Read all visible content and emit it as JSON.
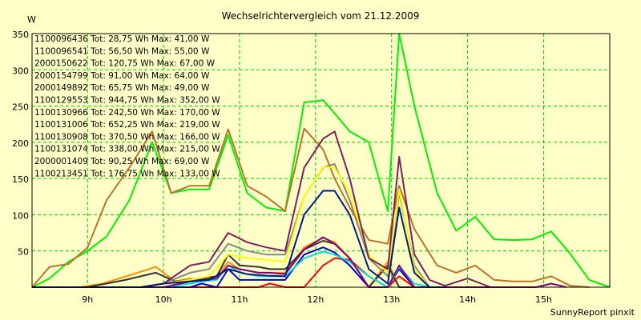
{
  "chart_data": {
    "type": "line",
    "title": "Wechselrichtervergleich vom 21.12.2009",
    "ylabel": "W",
    "xlabel": "",
    "footer": "SunnyReport pinxit",
    "ylim": [
      0,
      350
    ],
    "xlim": [
      8.27,
      15.87
    ],
    "yticks": [
      0,
      50,
      100,
      150,
      200,
      250,
      300,
      350
    ],
    "ytick_labels": [
      "",
      "50",
      "100",
      "150",
      "200",
      "250",
      "300",
      "350"
    ],
    "xticks": [
      9,
      10,
      11,
      12,
      13,
      14,
      15
    ],
    "xtick_labels": [
      "9h",
      "10h",
      "11h",
      "12h",
      "13h",
      "14h",
      "15h"
    ],
    "grid": true,
    "legend_position": "top-left",
    "series": [
      {
        "name": "1100096436 Tot: 28,75 Wh Max: 41,00 W",
        "color": "#ff0000",
        "x": [
          8.27,
          10.0,
          10.35,
          10.5,
          10.7,
          10.85,
          11.0,
          11.25,
          11.4,
          11.6,
          11.85,
          12.1,
          12.25,
          12.45,
          12.7,
          12.95,
          13.1,
          13.3,
          13.5
        ],
        "y": [
          0,
          0,
          0,
          0,
          0,
          0,
          0,
          0,
          5,
          0,
          0,
          30,
          40,
          38,
          15,
          0,
          15,
          0,
          0
        ]
      },
      {
        "name": "1100096541 Tot: 56,50 Wh Max: 55,00 W",
        "color": "#0000cc",
        "x": [
          8.27,
          10.0,
          10.35,
          10.5,
          10.7,
          10.85,
          11.0,
          11.25,
          11.4,
          11.6,
          11.85,
          12.1,
          12.25,
          12.45,
          12.7,
          12.95,
          13.1,
          13.3,
          13.5
        ],
        "y": [
          0,
          0,
          0,
          5,
          0,
          25,
          10,
          10,
          10,
          10,
          45,
          55,
          48,
          30,
          0,
          0,
          25,
          0,
          0
        ]
      },
      {
        "name": "2000150622 Tot: 120,75 Wh Max: 67,00 W",
        "color": "#ff8c00",
        "x": [
          8.27,
          8.9,
          9.2,
          9.6,
          9.9,
          10.15,
          10.35,
          10.5,
          10.7,
          10.85,
          11.0,
          11.25,
          11.4,
          11.6,
          11.85,
          12.1,
          12.25,
          12.45,
          12.7,
          12.95,
          13.1,
          13.3,
          13.5,
          13.7
        ],
        "y": [
          0,
          0,
          5,
          18,
          28,
          8,
          12,
          10,
          15,
          35,
          25,
          20,
          20,
          20,
          55,
          68,
          62,
          40,
          0,
          35,
          0,
          0,
          0,
          0
        ]
      },
      {
        "name": "2000154799 Tot: 91,00 Wh Max: 64,00 W",
        "color": "#333333",
        "x": [
          8.27,
          9.0,
          9.5,
          9.9,
          10.15,
          10.35,
          10.5,
          10.7,
          10.85,
          11.0,
          11.25,
          11.4,
          11.6,
          11.85,
          12.1,
          12.25,
          12.45,
          12.7,
          12.95,
          13.1,
          13.3,
          13.5
        ],
        "y": [
          0,
          0,
          10,
          20,
          8,
          10,
          12,
          15,
          45,
          30,
          28,
          25,
          25,
          52,
          64,
          60,
          40,
          0,
          30,
          0,
          0,
          0
        ]
      },
      {
        "name": "2000149892 Tot: 65,75 Wh Max: 49,00 W",
        "color": "#00dddd",
        "x": [
          8.27,
          10.0,
          10.35,
          10.5,
          10.7,
          10.85,
          11.0,
          11.25,
          11.4,
          11.6,
          11.85,
          12.1,
          12.25,
          12.45,
          12.7,
          12.95,
          13.1,
          13.3,
          13.5
        ],
        "y": [
          0,
          0,
          5,
          8,
          10,
          30,
          20,
          15,
          15,
          15,
          40,
          49,
          45,
          35,
          15,
          0,
          28,
          5,
          0
        ]
      },
      {
        "name": "1100129553 Tot: 944,75 Wh Max: 352,00 W",
        "color": "#00ee00",
        "x": [
          8.27,
          8.5,
          8.75,
          9.0,
          9.25,
          9.55,
          9.85,
          10.1,
          10.35,
          10.6,
          10.85,
          11.1,
          11.35,
          11.6,
          11.85,
          12.1,
          12.25,
          12.45,
          12.7,
          12.95,
          13.1,
          13.3,
          13.6,
          13.85,
          14.1,
          14.35,
          14.6,
          14.85,
          15.1,
          15.35,
          15.6,
          15.87
        ],
        "y": [
          0,
          12,
          35,
          50,
          70,
          120,
          200,
          130,
          135,
          135,
          210,
          130,
          110,
          105,
          255,
          258,
          240,
          215,
          200,
          105,
          350,
          250,
          130,
          78,
          97,
          66,
          65,
          66,
          77,
          46,
          10,
          0
        ]
      },
      {
        "name": "1100130966 Tot: 242,50 Wh Max: 170,00 W",
        "color": "#888888",
        "x": [
          8.27,
          9.7,
          10.0,
          10.35,
          10.6,
          10.85,
          11.1,
          11.35,
          11.6,
          11.85,
          12.1,
          12.25,
          12.45,
          12.7,
          12.95,
          13.1,
          13.3,
          13.5,
          13.7
        ],
        "y": [
          0,
          0,
          5,
          20,
          25,
          60,
          50,
          45,
          45,
          125,
          165,
          170,
          120,
          40,
          15,
          130,
          30,
          0,
          0
        ]
      },
      {
        "name": "1100131006 Tot: 652,25 Wh Max: 219,00 W",
        "color": "#b8732c",
        "x": [
          8.27,
          8.5,
          8.75,
          9.0,
          9.25,
          9.55,
          9.85,
          10.1,
          10.35,
          10.6,
          10.85,
          11.1,
          11.35,
          11.6,
          11.85,
          12.1,
          12.25,
          12.45,
          12.7,
          12.95,
          13.1,
          13.3,
          13.6,
          13.85,
          14.1,
          14.35,
          14.6,
          14.85,
          15.1,
          15.35,
          15.6
        ],
        "y": [
          0,
          28,
          32,
          55,
          120,
          165,
          215,
          130,
          140,
          140,
          218,
          140,
          125,
          105,
          219,
          190,
          150,
          110,
          65,
          60,
          140,
          80,
          30,
          20,
          30,
          10,
          8,
          8,
          15,
          2,
          0
        ]
      },
      {
        "name": "1100130908 Tot: 370,50 Wh Max: 166,00 W",
        "color": "#ffff00",
        "x": [
          8.27,
          9.7,
          10.0,
          10.35,
          10.6,
          10.85,
          11.1,
          11.35,
          11.6,
          11.85,
          12.1,
          12.25,
          12.45,
          12.7,
          12.95,
          13.1,
          13.3,
          13.5,
          13.7
        ],
        "y": [
          0,
          0,
          5,
          10,
          15,
          45,
          40,
          38,
          35,
          125,
          166,
          165,
          130,
          45,
          20,
          135,
          25,
          0,
          0
        ]
      },
      {
        "name": "1100131074 Tot: 338,00 Wh Max: 215,00 W",
        "color": "#7b1f5e",
        "x": [
          8.27,
          9.7,
          10.0,
          10.35,
          10.6,
          10.85,
          11.1,
          11.35,
          11.6,
          11.85,
          12.1,
          12.25,
          12.45,
          12.7,
          12.95,
          13.1,
          13.3,
          13.5,
          13.7,
          14.0,
          14.3,
          14.6
        ],
        "y": [
          0,
          0,
          5,
          30,
          35,
          75,
          62,
          55,
          50,
          165,
          205,
          215,
          150,
          40,
          25,
          180,
          45,
          10,
          2,
          12,
          0,
          0
        ]
      },
      {
        "name": "2000001409 Tot: 90,25 Wh Max: 69,00 W",
        "color": "#800080",
        "x": [
          8.27,
          10.0,
          10.35,
          10.5,
          10.7,
          10.85,
          11.0,
          11.25,
          11.4,
          11.6,
          11.85,
          12.1,
          12.25,
          12.45,
          12.7,
          12.95,
          13.1,
          13.3,
          13.5,
          13.7,
          14.9,
          15.1,
          15.3
        ],
        "y": [
          0,
          0,
          8,
          10,
          12,
          30,
          25,
          20,
          20,
          18,
          52,
          69,
          60,
          40,
          0,
          0,
          30,
          0,
          0,
          0,
          0,
          5,
          0
        ]
      },
      {
        "name": "1100213451 Tot: 176,75 Wh Max: 133,00 W",
        "color": "#001a80",
        "x": [
          8.27,
          9.7,
          10.0,
          10.35,
          10.6,
          10.85,
          11.1,
          11.35,
          11.6,
          11.85,
          12.1,
          12.25,
          12.45,
          12.7,
          12.95,
          13.1,
          13.3,
          13.5,
          13.7
        ],
        "y": [
          0,
          0,
          5,
          8,
          10,
          25,
          18,
          16,
          15,
          100,
          133,
          133,
          100,
          25,
          5,
          110,
          20,
          0,
          0
        ]
      }
    ]
  }
}
